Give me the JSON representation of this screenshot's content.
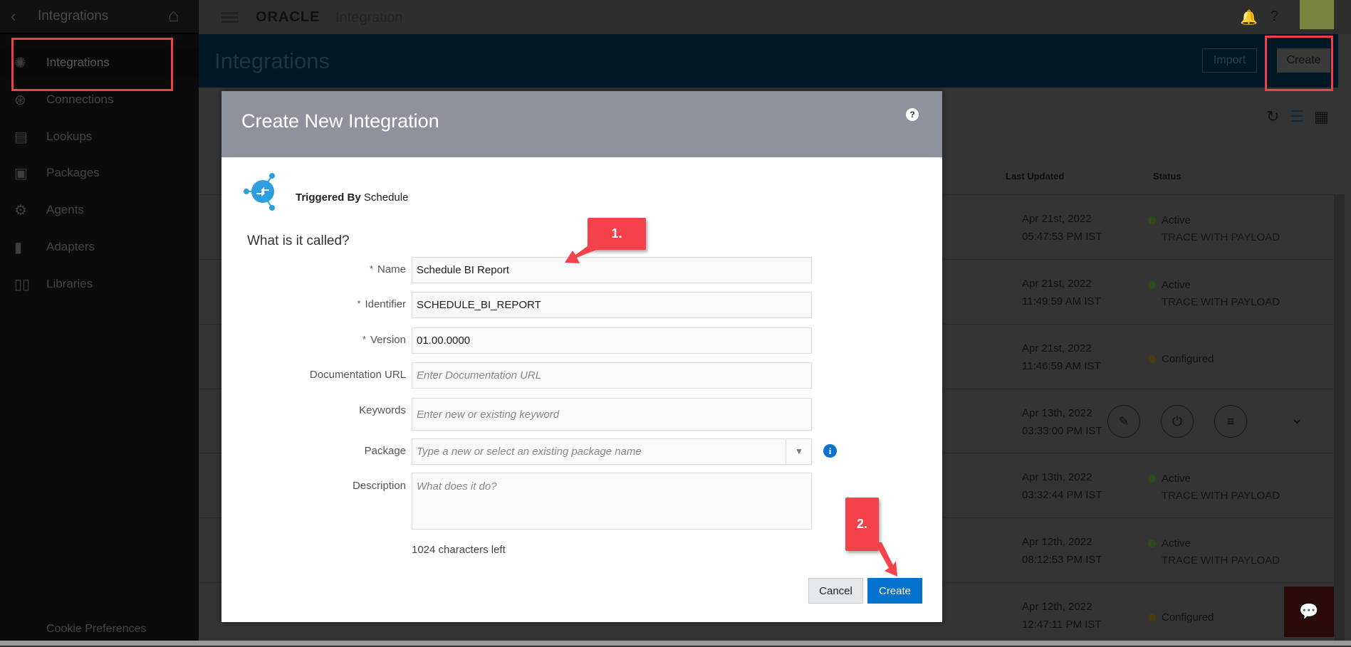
{
  "sidebar": {
    "title": "Integrations",
    "items": [
      {
        "label": "Integrations",
        "icon": "integration-icon",
        "active": true
      },
      {
        "label": "Connections",
        "icon": "connection-icon"
      },
      {
        "label": "Lookups",
        "icon": "lookup-icon"
      },
      {
        "label": "Packages",
        "icon": "package-icon"
      },
      {
        "label": "Agents",
        "icon": "gear-icon"
      },
      {
        "label": "Adapters",
        "icon": "plug-icon"
      },
      {
        "label": "Libraries",
        "icon": "library-icon"
      }
    ],
    "cookie": "Cookie Preferences"
  },
  "topbar": {
    "brand": "ORACLE",
    "product": "Integration"
  },
  "band": {
    "title": "Integrations",
    "import_label": "Import",
    "create_label": "Create"
  },
  "table": {
    "headers": {
      "last_updated": "Last Updated",
      "status": "Status"
    },
    "rows": [
      {
        "date": "Apr 21st, 2022",
        "time": "05:47:53 PM IST",
        "status": "Active",
        "trace": "TRACE WITH PAYLOAD",
        "status_color": "#2f4a1a"
      },
      {
        "date": "Apr 21st, 2022",
        "time": "11:49:59 AM IST",
        "status": "Active",
        "trace": "TRACE WITH PAYLOAD",
        "status_color": "#2f4a1a"
      },
      {
        "date": "Apr 21st, 2022",
        "time": "11:46:59 AM IST",
        "status": "Configured",
        "trace": "",
        "status_color": "#4a3a12"
      },
      {
        "date": "Apr 13th, 2022",
        "time": "03:33:00 PM IST",
        "status": "",
        "trace": "",
        "hover": true
      },
      {
        "date": "Apr 13th, 2022",
        "time": "03:32:44 PM IST",
        "status": "Active",
        "trace": "TRACE WITH PAYLOAD",
        "status_color": "#2f4a1a"
      },
      {
        "date": "Apr 12th, 2022",
        "time": "08:12:53 PM IST",
        "status": "Active",
        "trace": "TRACE WITH PAYLOAD",
        "status_color": "#2f4a1a"
      },
      {
        "date": "Apr 12th, 2022",
        "time": "12:47:11 PM IST",
        "status": "Configured",
        "trace": "",
        "status_color": "#4a3a12"
      }
    ]
  },
  "dialog": {
    "title": "Create New Integration",
    "help": "?",
    "triggered_by_label": "Triggered By",
    "triggered_by_value": "Schedule",
    "question": "What is it called?",
    "fields": {
      "name": {
        "label": "Name",
        "value": "Schedule BI Report",
        "required": "*"
      },
      "identifier": {
        "label": "Identifier",
        "value": "SCHEDULE_BI_REPORT",
        "required": "*"
      },
      "version": {
        "label": "Version",
        "value": "01.00.0000",
        "required": "*"
      },
      "doc_url": {
        "label": "Documentation URL",
        "placeholder": "Enter Documentation URL"
      },
      "keywords": {
        "label": "Keywords",
        "placeholder": "Enter new or existing keyword"
      },
      "package": {
        "label": "Package",
        "placeholder": "Type a new or select an existing package name"
      },
      "description": {
        "label": "Description",
        "placeholder": "What does it do?"
      }
    },
    "chars_left": "1024 characters left",
    "cancel_label": "Cancel",
    "create_label": "Create"
  },
  "callouts": [
    "1.",
    "2."
  ],
  "colors": {
    "accent": "#0572ce",
    "callout": "#f5424a",
    "dialog_header": "#8f929c"
  }
}
